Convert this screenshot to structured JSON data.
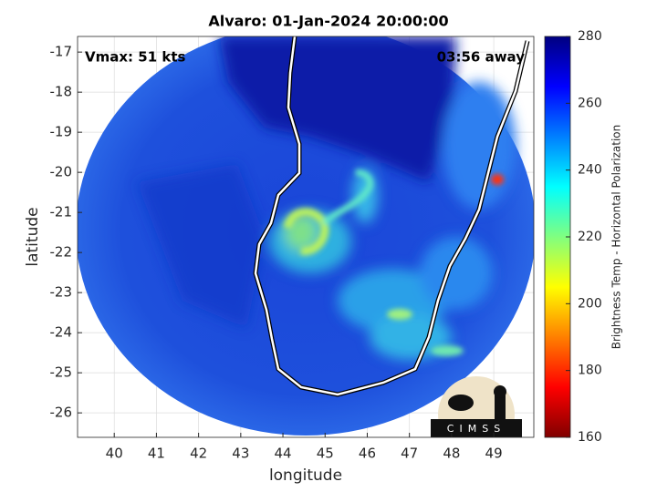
{
  "chart_data": {
    "type": "map",
    "title": "Alvaro: 01-Jan-2024 20:00:00",
    "xlabel": "longitude",
    "ylabel": "latitude",
    "xlim": [
      39.13,
      49.95
    ],
    "ylim": [
      -26.61,
      -16.61
    ],
    "xticks": [
      40,
      41,
      42,
      43,
      44,
      45,
      46,
      47,
      48,
      49
    ],
    "yticks": [
      -26,
      -25,
      -24,
      -23,
      -22,
      -21,
      -20,
      -19,
      -18,
      -17
    ],
    "grid": true,
    "annotations": [
      "Vmax: 51 kts",
      "03:56 away"
    ],
    "logo": "CIMSS",
    "colorbar": {
      "label": "Brightness Temp - Horizontal Polarization",
      "lim": [
        160,
        280
      ],
      "ticks": [
        160,
        180,
        200,
        220,
        240,
        260,
        280
      ],
      "colormap": "jet"
    }
  }
}
